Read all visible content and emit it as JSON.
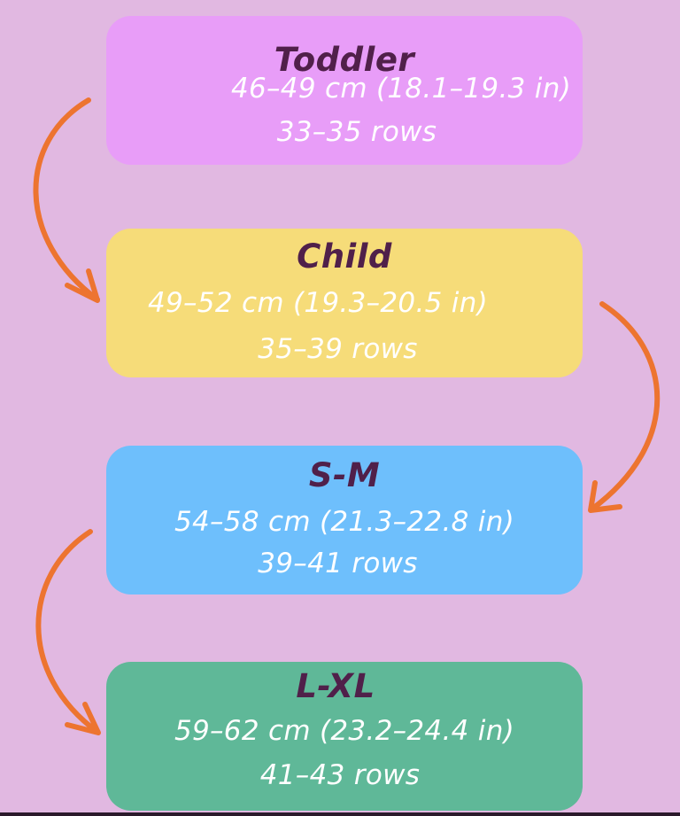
{
  "colors": {
    "background": "#e1b8e1",
    "toddler": "#e89df8",
    "child": "#f6dc79",
    "sm": "#6ebffc",
    "lxl": "#5fb898",
    "title_text": "#50204a",
    "body_text": "#ffffff",
    "arrow": "#ed7430"
  },
  "sizes": [
    {
      "title": "Toddler",
      "measure": "46–49 cm (18.1–19.3 in)",
      "rows": "33–35 rows"
    },
    {
      "title": "Child",
      "measure": "49–52 cm (19.3–20.5 in)",
      "rows": "35–39 rows"
    },
    {
      "title": "S-M",
      "measure": "54–58 cm (21.3–22.8 in)",
      "rows": "39–41 rows"
    },
    {
      "title": "L-XL",
      "measure": "59–62 cm (23.2–24.4 in)",
      "rows": "41–43 rows"
    }
  ]
}
